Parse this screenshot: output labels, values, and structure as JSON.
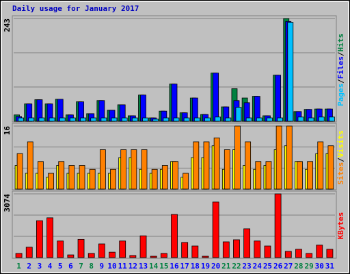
{
  "chart_data": [
    {
      "type": "bar",
      "title": "Daily usage for January 2017",
      "axis_label_separator": "/",
      "ylim": [
        0,
        243
      ],
      "yticks": [
        243
      ],
      "grid_divisions": 3,
      "series": [
        {
          "name": "Hits",
          "color": "#008040",
          "values": [
            15,
            41,
            51,
            41,
            52,
            15,
            46,
            18,
            49,
            26,
            39,
            13,
            62,
            8,
            24,
            88,
            20,
            55,
            16,
            114,
            34,
            77,
            55,
            59,
            13,
            109,
            243,
            23,
            28,
            29,
            29
          ]
        },
        {
          "name": "Files",
          "color": "#0000ff",
          "values": [
            11,
            41,
            51,
            41,
            52,
            15,
            46,
            18,
            49,
            26,
            39,
            13,
            62,
            8,
            24,
            88,
            20,
            55,
            16,
            114,
            34,
            49,
            44,
            59,
            13,
            109,
            236,
            23,
            28,
            29,
            29
          ]
        },
        {
          "name": "Pages",
          "color": "#00c0ff",
          "values": [
            8,
            8,
            8,
            8,
            8,
            8,
            8,
            8,
            8,
            8,
            8,
            8,
            8,
            5,
            8,
            8,
            8,
            8,
            8,
            10,
            8,
            33,
            8,
            8,
            8,
            8,
            234,
            10,
            8,
            10,
            10
          ]
        }
      ]
    },
    {
      "type": "bar",
      "axis_label_separator": "/",
      "ylim": [
        0,
        16
      ],
      "yticks": [
        16
      ],
      "grid_divisions": 3,
      "series": [
        {
          "name": "Visits",
          "color": "#ffff00",
          "values": [
            6,
            4,
            4,
            3,
            6,
            4,
            4,
            4,
            4,
            4,
            8,
            8,
            5,
            4,
            5,
            7,
            3,
            8,
            8,
            11,
            5,
            10,
            6,
            5,
            6,
            10,
            11,
            7,
            5,
            9,
            9
          ]
        },
        {
          "name": "Sites",
          "color": "#ff8000",
          "values": [
            9,
            12,
            7,
            4,
            7,
            6,
            6,
            5,
            10,
            5,
            10,
            10,
            10,
            5,
            6,
            7,
            4,
            12,
            12,
            13,
            10,
            16,
            12,
            7,
            7,
            16,
            16,
            7,
            7,
            12,
            11
          ]
        }
      ]
    },
    {
      "type": "bar",
      "ylim": [
        0,
        3074
      ],
      "yticks": [
        3074
      ],
      "grid_divisions": 3,
      "categories": [
        "1",
        "2",
        "3",
        "4",
        "5",
        "6",
        "7",
        "8",
        "9",
        "10",
        "11",
        "12",
        "13",
        "14",
        "15",
        "16",
        "17",
        "18",
        "19",
        "20",
        "21",
        "22",
        "23",
        "24",
        "25",
        "26",
        "27",
        "28",
        "29",
        "30",
        "31"
      ],
      "category_colors": [
        "#008040",
        "#0000ff",
        "#0000ff",
        "#0000ff",
        "#0000ff",
        "#0000ff",
        "#008040",
        "#008040",
        "#0000ff",
        "#0000ff",
        "#0000ff",
        "#0000ff",
        "#0000ff",
        "#008040",
        "#008040",
        "#0000ff",
        "#0000ff",
        "#0000ff",
        "#0000ff",
        "#0000ff",
        "#008040",
        "#008040",
        "#0000ff",
        "#0000ff",
        "#0000ff",
        "#0000ff",
        "#0000ff",
        "#008040",
        "#008040",
        "#0000ff",
        "#0000ff"
      ],
      "series": [
        {
          "name": "KBytes",
          "color": "#ff0000",
          "values": [
            200,
            500,
            1780,
            1920,
            800,
            130,
            880,
            200,
            660,
            260,
            800,
            100,
            1050,
            65,
            200,
            2080,
            730,
            560,
            65,
            2680,
            760,
            860,
            1390,
            800,
            560,
            3074,
            300,
            400,
            200,
            600,
            400
          ]
        }
      ]
    }
  ]
}
